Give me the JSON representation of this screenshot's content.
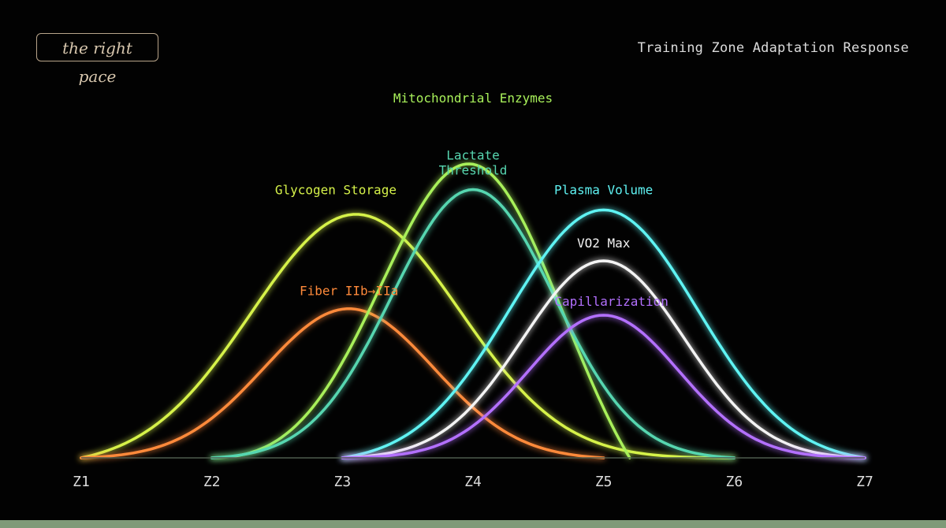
{
  "brand": {
    "logo_text": "the right pace"
  },
  "chart_data": {
    "type": "line",
    "title": "Training Zone Adaptation Response",
    "x_ticks": [
      "Z1",
      "Z2",
      "Z3",
      "Z4",
      "Z5",
      "Z6",
      "Z7"
    ],
    "xlim": [
      1,
      7
    ],
    "ylim": [
      0,
      1
    ],
    "grid": false,
    "series": [
      {
        "name": "Glycogen Storage",
        "color": "#d6f24a",
        "peak_zone": 3.1,
        "peak": 0.73,
        "spread": 0.8,
        "start": 1.0,
        "end": 6.0
      },
      {
        "name": "Fiber IIb→IIa",
        "color": "#ff8a3a",
        "peak_zone": 3.05,
        "peak": 0.44,
        "spread": 0.65,
        "start": 1.0,
        "end": 5.0
      },
      {
        "name": "Mitochondrial Enzymes",
        "color": "#a8f05a",
        "peak_zone": 4.0,
        "peak": 1.0,
        "spread": 0.7,
        "start": 2.0,
        "end": 5.2
      },
      {
        "name": "Lactate Threshold",
        "color": "#57d6b0",
        "peak_zone": 4.0,
        "peak": 0.79,
        "spread": 0.62,
        "start": 2.0,
        "end": 6.0
      },
      {
        "name": "Plasma Volume",
        "color": "#5ff3f3",
        "peak_zone": 5.0,
        "peak": 0.73,
        "spread": 0.72,
        "start": 3.0,
        "end": 7.0
      },
      {
        "name": "VO2 Max",
        "color": "#f4f4f4",
        "peak_zone": 5.0,
        "peak": 0.58,
        "spread": 0.62,
        "start": 3.0,
        "end": 7.0
      },
      {
        "name": "Capillarization",
        "color": "#b370ff",
        "peak_zone": 5.0,
        "peak": 0.42,
        "spread": 0.58,
        "start": 3.0,
        "end": 7.0
      }
    ]
  }
}
